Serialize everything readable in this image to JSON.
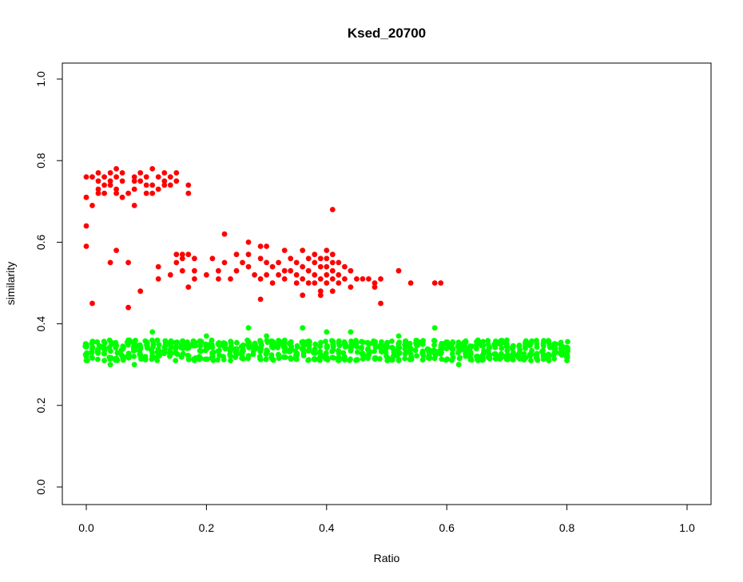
{
  "chart_data": {
    "type": "scatter",
    "title": "Ksed_20700",
    "xlabel": "Ratio",
    "ylabel": "similarity",
    "xlim": [
      0.0,
      1.0
    ],
    "ylim": [
      0.0,
      1.0
    ],
    "xticks": [
      "0.0",
      "0.2",
      "0.4",
      "0.6",
      "0.8",
      "1.0"
    ],
    "yticks": [
      "0.0",
      "0.2",
      "0.4",
      "0.6",
      "0.8",
      "1.0"
    ],
    "grid": false,
    "legend": "none",
    "series": [
      {
        "color": "#ff0000",
        "points": [
          [
            0.0,
            0.76
          ],
          [
            0.0,
            0.71
          ],
          [
            0.0,
            0.64
          ],
          [
            0.0,
            0.59
          ],
          [
            0.01,
            0.76
          ],
          [
            0.01,
            0.69
          ],
          [
            0.01,
            0.45
          ],
          [
            0.02,
            0.77
          ],
          [
            0.02,
            0.75
          ],
          [
            0.02,
            0.73
          ],
          [
            0.02,
            0.72
          ],
          [
            0.03,
            0.76
          ],
          [
            0.03,
            0.74
          ],
          [
            0.03,
            0.72
          ],
          [
            0.04,
            0.77
          ],
          [
            0.04,
            0.75
          ],
          [
            0.04,
            0.74
          ],
          [
            0.04,
            0.55
          ],
          [
            0.05,
            0.78
          ],
          [
            0.05,
            0.76
          ],
          [
            0.05,
            0.73
          ],
          [
            0.05,
            0.72
          ],
          [
            0.05,
            0.58
          ],
          [
            0.06,
            0.77
          ],
          [
            0.06,
            0.75
          ],
          [
            0.06,
            0.71
          ],
          [
            0.07,
            0.72
          ],
          [
            0.07,
            0.55
          ],
          [
            0.07,
            0.44
          ],
          [
            0.08,
            0.76
          ],
          [
            0.08,
            0.75
          ],
          [
            0.08,
            0.73
          ],
          [
            0.08,
            0.69
          ],
          [
            0.09,
            0.77
          ],
          [
            0.09,
            0.75
          ],
          [
            0.09,
            0.48
          ],
          [
            0.1,
            0.76
          ],
          [
            0.1,
            0.74
          ],
          [
            0.1,
            0.72
          ],
          [
            0.11,
            0.78
          ],
          [
            0.11,
            0.74
          ],
          [
            0.11,
            0.72
          ],
          [
            0.12,
            0.76
          ],
          [
            0.12,
            0.73
          ],
          [
            0.12,
            0.54
          ],
          [
            0.12,
            0.51
          ],
          [
            0.13,
            0.77
          ],
          [
            0.13,
            0.75
          ],
          [
            0.13,
            0.74
          ],
          [
            0.14,
            0.76
          ],
          [
            0.14,
            0.74
          ],
          [
            0.14,
            0.52
          ],
          [
            0.15,
            0.77
          ],
          [
            0.15,
            0.75
          ],
          [
            0.15,
            0.57
          ],
          [
            0.15,
            0.55
          ],
          [
            0.16,
            0.57
          ],
          [
            0.16,
            0.56
          ],
          [
            0.16,
            0.53
          ],
          [
            0.17,
            0.74
          ],
          [
            0.17,
            0.72
          ],
          [
            0.17,
            0.57
          ],
          [
            0.17,
            0.49
          ],
          [
            0.18,
            0.56
          ],
          [
            0.18,
            0.53
          ],
          [
            0.18,
            0.51
          ],
          [
            0.2,
            0.52
          ],
          [
            0.21,
            0.56
          ],
          [
            0.22,
            0.53
          ],
          [
            0.22,
            0.51
          ],
          [
            0.23,
            0.62
          ],
          [
            0.23,
            0.55
          ],
          [
            0.24,
            0.51
          ],
          [
            0.25,
            0.57
          ],
          [
            0.25,
            0.53
          ],
          [
            0.26,
            0.55
          ],
          [
            0.27,
            0.6
          ],
          [
            0.27,
            0.57
          ],
          [
            0.27,
            0.54
          ],
          [
            0.28,
            0.52
          ],
          [
            0.29,
            0.59
          ],
          [
            0.29,
            0.56
          ],
          [
            0.29,
            0.51
          ],
          [
            0.29,
            0.46
          ],
          [
            0.3,
            0.59
          ],
          [
            0.3,
            0.55
          ],
          [
            0.3,
            0.52
          ],
          [
            0.31,
            0.54
          ],
          [
            0.31,
            0.5
          ],
          [
            0.32,
            0.55
          ],
          [
            0.32,
            0.52
          ],
          [
            0.33,
            0.58
          ],
          [
            0.33,
            0.53
          ],
          [
            0.33,
            0.51
          ],
          [
            0.34,
            0.56
          ],
          [
            0.34,
            0.53
          ],
          [
            0.35,
            0.55
          ],
          [
            0.35,
            0.52
          ],
          [
            0.35,
            0.5
          ],
          [
            0.36,
            0.58
          ],
          [
            0.36,
            0.54
          ],
          [
            0.36,
            0.51
          ],
          [
            0.36,
            0.47
          ],
          [
            0.37,
            0.56
          ],
          [
            0.37,
            0.53
          ],
          [
            0.37,
            0.5
          ],
          [
            0.38,
            0.57
          ],
          [
            0.38,
            0.55
          ],
          [
            0.38,
            0.52
          ],
          [
            0.38,
            0.5
          ],
          [
            0.39,
            0.56
          ],
          [
            0.39,
            0.54
          ],
          [
            0.39,
            0.51
          ],
          [
            0.39,
            0.48
          ],
          [
            0.39,
            0.47
          ],
          [
            0.4,
            0.58
          ],
          [
            0.4,
            0.56
          ],
          [
            0.4,
            0.54
          ],
          [
            0.4,
            0.52
          ],
          [
            0.4,
            0.5
          ],
          [
            0.41,
            0.68
          ],
          [
            0.41,
            0.57
          ],
          [
            0.41,
            0.55
          ],
          [
            0.41,
            0.53
          ],
          [
            0.41,
            0.51
          ],
          [
            0.41,
            0.48
          ],
          [
            0.42,
            0.55
          ],
          [
            0.42,
            0.52
          ],
          [
            0.42,
            0.5
          ],
          [
            0.43,
            0.54
          ],
          [
            0.43,
            0.51
          ],
          [
            0.44,
            0.53
          ],
          [
            0.44,
            0.49
          ],
          [
            0.45,
            0.51
          ],
          [
            0.46,
            0.51
          ],
          [
            0.47,
            0.51
          ],
          [
            0.48,
            0.5
          ],
          [
            0.48,
            0.49
          ],
          [
            0.49,
            0.51
          ],
          [
            0.49,
            0.45
          ],
          [
            0.52,
            0.53
          ],
          [
            0.54,
            0.5
          ],
          [
            0.58,
            0.5
          ],
          [
            0.59,
            0.5
          ]
        ]
      },
      {
        "color": "#00ff00",
        "x_range": [
          0.0,
          0.8
        ],
        "x_step": 0.01,
        "y_center": 0.335,
        "y_spread": 0.025,
        "points": [
          [
            0.0,
            0.35
          ],
          [
            0.0,
            0.32
          ],
          [
            0.0,
            0.31
          ],
          [
            0.01,
            0.34
          ],
          [
            0.02,
            0.33
          ],
          [
            0.03,
            0.31
          ],
          [
            0.04,
            0.3
          ],
          [
            0.06,
            0.32
          ],
          [
            0.07,
            0.36
          ],
          [
            0.08,
            0.3
          ],
          [
            0.11,
            0.38
          ],
          [
            0.13,
            0.33
          ],
          [
            0.18,
            0.31
          ],
          [
            0.2,
            0.37
          ],
          [
            0.24,
            0.31
          ],
          [
            0.27,
            0.39
          ],
          [
            0.3,
            0.37
          ],
          [
            0.36,
            0.39
          ],
          [
            0.4,
            0.38
          ],
          [
            0.44,
            0.38
          ],
          [
            0.52,
            0.37
          ],
          [
            0.58,
            0.39
          ],
          [
            0.62,
            0.3
          ],
          [
            0.7,
            0.36
          ],
          [
            0.74,
            0.31
          ],
          [
            0.8,
            0.31
          ]
        ]
      }
    ]
  }
}
